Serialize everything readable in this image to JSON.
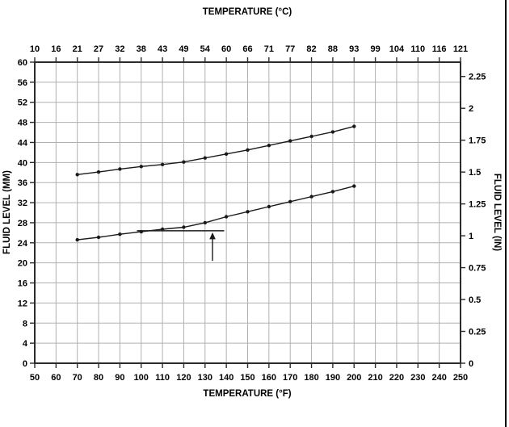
{
  "page": {
    "background": "#ffffff"
  },
  "chart_data": {
    "type": "line",
    "top_axis_title": "TEMPERATURE (°C)",
    "bottom_axis_title": "TEMPERATURE (°F)",
    "left_axis_title": "FLUID LEVEL (MM)",
    "right_axis_title": "FLUID LEVEL (IN)",
    "x_axis_f": {
      "min": 50,
      "max": 250,
      "ticks": [
        50,
        60,
        70,
        80,
        90,
        100,
        110,
        120,
        130,
        140,
        150,
        160,
        170,
        180,
        190,
        200,
        210,
        220,
        230,
        240,
        250
      ]
    },
    "x_axis_c_labels": [
      "10",
      "16",
      "21",
      "27",
      "32",
      "38",
      "43",
      "49",
      "54",
      "60",
      "66",
      "71",
      "77",
      "82",
      "88",
      "93",
      "99",
      "104",
      "110",
      "116",
      "121"
    ],
    "y_axis_mm": {
      "min": 0,
      "max": 60,
      "ticks": [
        0,
        4,
        8,
        12,
        16,
        20,
        24,
        28,
        32,
        36,
        40,
        44,
        48,
        52,
        56,
        60
      ]
    },
    "y_axis_in": {
      "ticks": [
        0,
        0.25,
        0.5,
        0.75,
        1,
        1.25,
        1.5,
        1.75,
        2,
        2.25
      ],
      "tick_labels": [
        "0",
        "0.25",
        "0.5",
        "0.75",
        "1",
        "1.25",
        "1.5",
        "1.75",
        "2",
        "2.25"
      ],
      "mm_per_inch": 25.4
    },
    "grid": true,
    "legend": "none",
    "series": [
      {
        "name": "upper-fluid-level-line",
        "x_f": [
          70,
          80,
          90,
          100,
          110,
          120,
          130,
          140,
          150,
          160,
          170,
          180,
          190,
          200
        ],
        "values_mm": [
          37.6,
          38.1,
          38.7,
          39.2,
          39.6,
          40.1,
          40.9,
          41.7,
          42.5,
          43.4,
          44.3,
          45.2,
          46.1,
          47.2
        ]
      },
      {
        "name": "lower-fluid-level-line",
        "x_f": [
          70,
          80,
          90,
          100,
          110,
          120,
          130,
          140,
          150,
          160,
          170,
          180,
          190,
          200
        ],
        "values_mm": [
          24.6,
          25.1,
          25.7,
          26.2,
          26.7,
          27.1,
          28.0,
          29.2,
          30.2,
          31.2,
          32.2,
          33.2,
          34.2,
          35.3
        ]
      }
    ],
    "annotation": {
      "level_line_mm": 26.4,
      "level_line_x_f": [
        98,
        139
      ],
      "arrow_x_f": 133.5,
      "arrow_from_mm": 20.4,
      "arrow_to_mm": 26.4
    },
    "colors": {
      "line": "#1a1a1a",
      "grid": "#b0b0b0",
      "border": "#2b2b2b",
      "text": "#000000"
    }
  }
}
